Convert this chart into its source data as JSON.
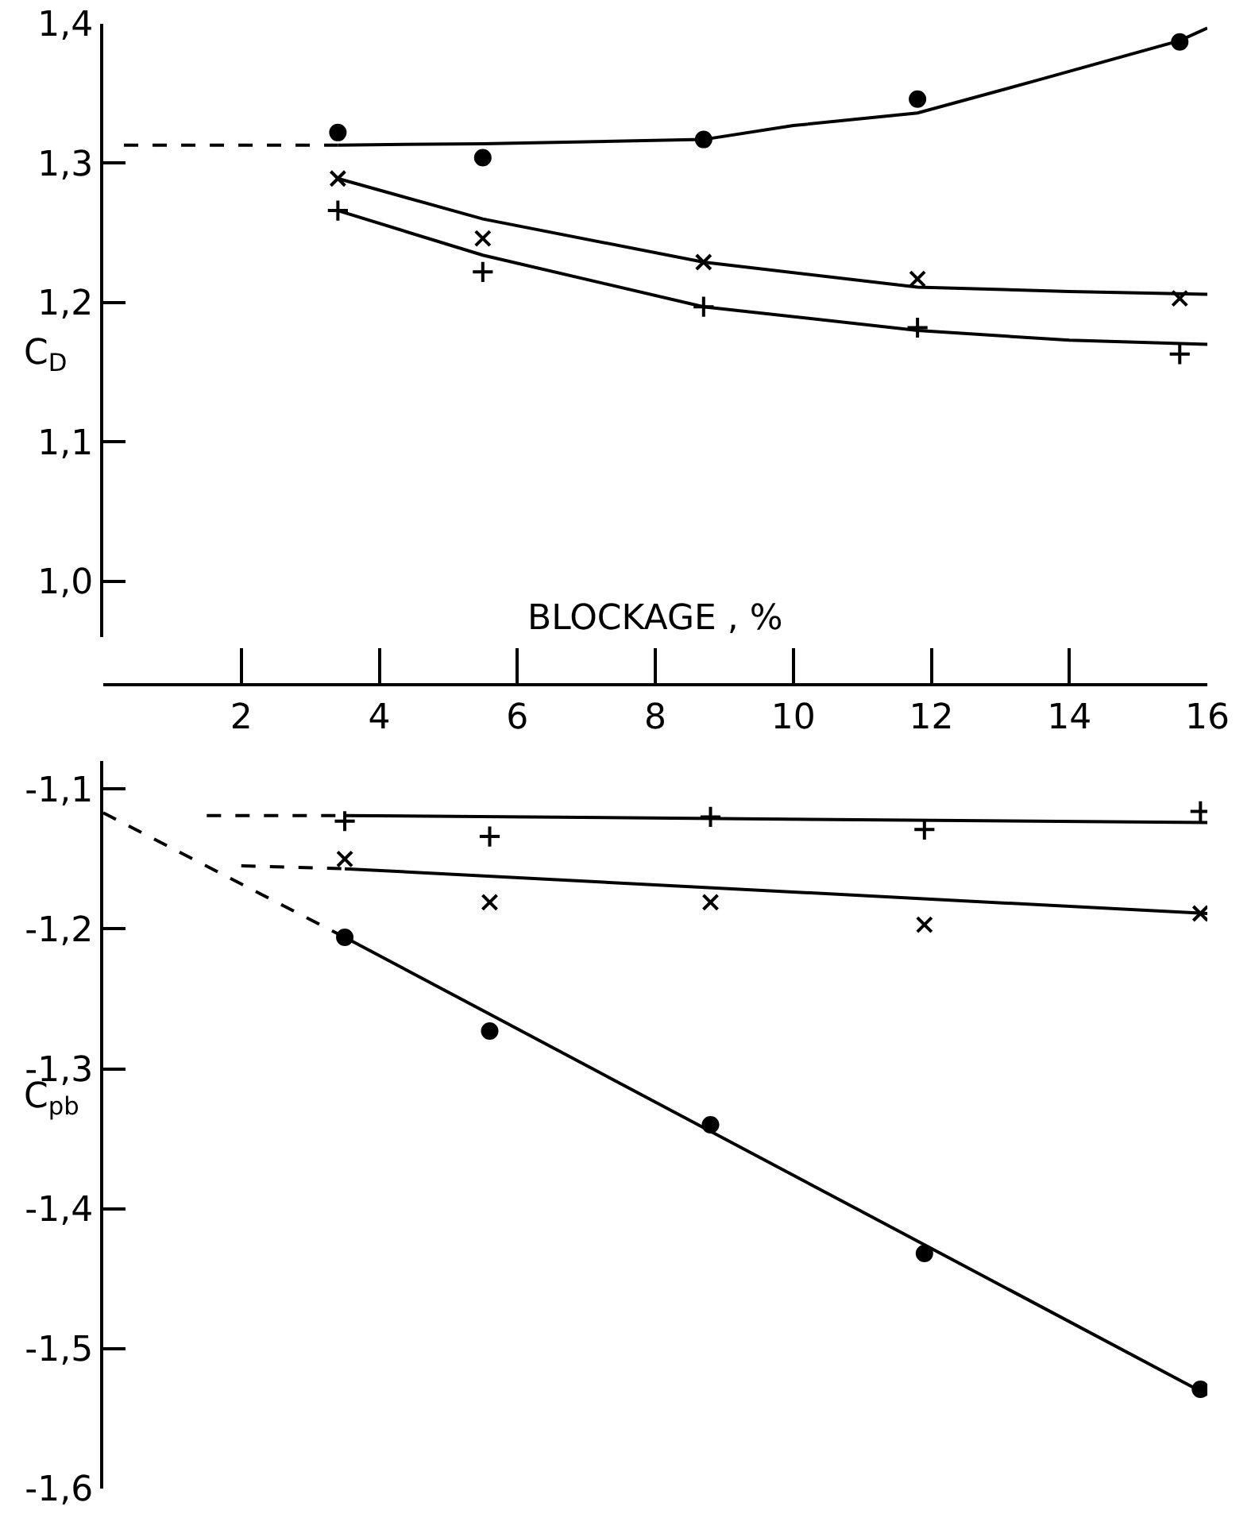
{
  "chart_data": [
    {
      "type": "scatter",
      "ylabel": "C$_{D}$",
      "xlabel": "BLOCKAGE , %",
      "xlim": [
        0,
        16
      ],
      "xticks": [
        2,
        4,
        6,
        8,
        10,
        12,
        14,
        16
      ],
      "ylim": [
        0.96,
        1.4
      ],
      "yticks": [
        {
          "value": 1.0,
          "label": "1,0"
        },
        {
          "value": 1.1,
          "label": "1,1"
        },
        {
          "value": 1.2,
          "label": "1,2"
        },
        {
          "value": 1.3,
          "label": "1,3"
        },
        {
          "value": 1.4,
          "label": "1,4"
        }
      ],
      "series": [
        {
          "marker": "circle",
          "color": "#000000",
          "x": [
            3.4,
            5.5,
            8.7,
            11.8,
            15.6
          ],
          "values": [
            1.322,
            1.304,
            1.317,
            1.346,
            1.387
          ]
        },
        {
          "marker": "x",
          "color": "#000000",
          "x": [
            3.4,
            5.5,
            8.7,
            11.8,
            15.6
          ],
          "values": [
            1.289,
            1.246,
            1.229,
            1.217,
            1.203
          ]
        },
        {
          "marker": "cross",
          "color": "#000000",
          "x": [
            3.4,
            5.5,
            8.7,
            11.8,
            15.6
          ],
          "values": [
            1.266,
            1.222,
            1.197,
            1.182,
            1.163
          ]
        },
        {
          "type": "line",
          "line_style": "dashed",
          "color": "#000000",
          "x": [
            0.3,
            3.4
          ],
          "values": [
            1.313,
            1.313
          ]
        },
        {
          "type": "line",
          "line_style": "solid",
          "color": "#000000",
          "x": [
            3.4,
            5.5,
            8.7,
            10,
            11.8,
            13.5,
            15.6,
            16
          ],
          "values": [
            1.313,
            1.314,
            1.317,
            1.327,
            1.336,
            1.359,
            1.388,
            1.397
          ]
        },
        {
          "type": "line",
          "line_style": "solid",
          "color": "#000000",
          "x": [
            3.4,
            5.5,
            8.7,
            11.8,
            14,
            16
          ],
          "values": [
            1.289,
            1.26,
            1.229,
            1.211,
            1.208,
            1.206
          ]
        },
        {
          "type": "line",
          "line_style": "solid",
          "color": "#000000",
          "x": [
            3.4,
            5.5,
            8.7,
            11.8,
            14,
            16
          ],
          "values": [
            1.266,
            1.234,
            1.197,
            1.18,
            1.173,
            1.17
          ]
        }
      ]
    },
    {
      "type": "scatter",
      "ylabel": "C$_{pb}$",
      "tick_labels": "y",
      "xlim": [
        0,
        16
      ],
      "ylim": [
        -1.6,
        -1.08
      ],
      "yticks": [
        {
          "value": -1.6,
          "label": "-1,6"
        },
        {
          "value": -1.5,
          "label": "-1,5"
        },
        {
          "value": -1.4,
          "label": "-1,4"
        },
        {
          "value": -1.3,
          "label": "-1,3"
        },
        {
          "value": -1.2,
          "label": "-1,2"
        },
        {
          "value": -1.1,
          "label": "-1,1"
        }
      ],
      "series": [
        {
          "marker": "cross",
          "color": "#000000",
          "x": [
            3.5,
            5.6,
            8.8,
            11.9,
            15.9
          ],
          "values": [
            -1.123,
            -1.134,
            -1.12,
            -1.129,
            -1.116
          ]
        },
        {
          "marker": "x",
          "color": "#000000",
          "x": [
            3.5,
            5.6,
            8.8,
            11.9,
            15.9
          ],
          "values": [
            -1.15,
            -1.181,
            -1.181,
            -1.197,
            -1.189
          ]
        },
        {
          "marker": "circle",
          "color": "#000000",
          "x": [
            3.5,
            5.6,
            8.8,
            11.9,
            15.9
          ],
          "values": [
            -1.206,
            -1.273,
            -1.34,
            -1.432,
            -1.529
          ]
        },
        {
          "type": "line",
          "line_style": "dashed",
          "color": "#000000",
          "x": [
            1.5,
            3.5
          ],
          "values": [
            -1.119,
            -1.119
          ]
        },
        {
          "type": "line",
          "line_style": "solid",
          "color": "#000000",
          "x": [
            3.5,
            16
          ],
          "values": [
            -1.119,
            -1.124
          ]
        },
        {
          "type": "line",
          "line_style": "dashed",
          "color": "#000000",
          "x": [
            2.0,
            3.5
          ],
          "values": [
            -1.155,
            -1.157
          ]
        },
        {
          "type": "line",
          "line_style": "solid",
          "color": "#000000",
          "x": [
            3.5,
            16
          ],
          "values": [
            -1.157,
            -1.189
          ]
        },
        {
          "type": "line",
          "line_style": "dashed",
          "color": "#000000",
          "x": [
            0,
            3.5
          ],
          "values": [
            -1.117,
            -1.206
          ]
        },
        {
          "type": "line",
          "line_style": "solid",
          "color": "#000000",
          "x": [
            3.5,
            16
          ],
          "values": [
            -1.206,
            -1.533
          ]
        }
      ]
    }
  ]
}
